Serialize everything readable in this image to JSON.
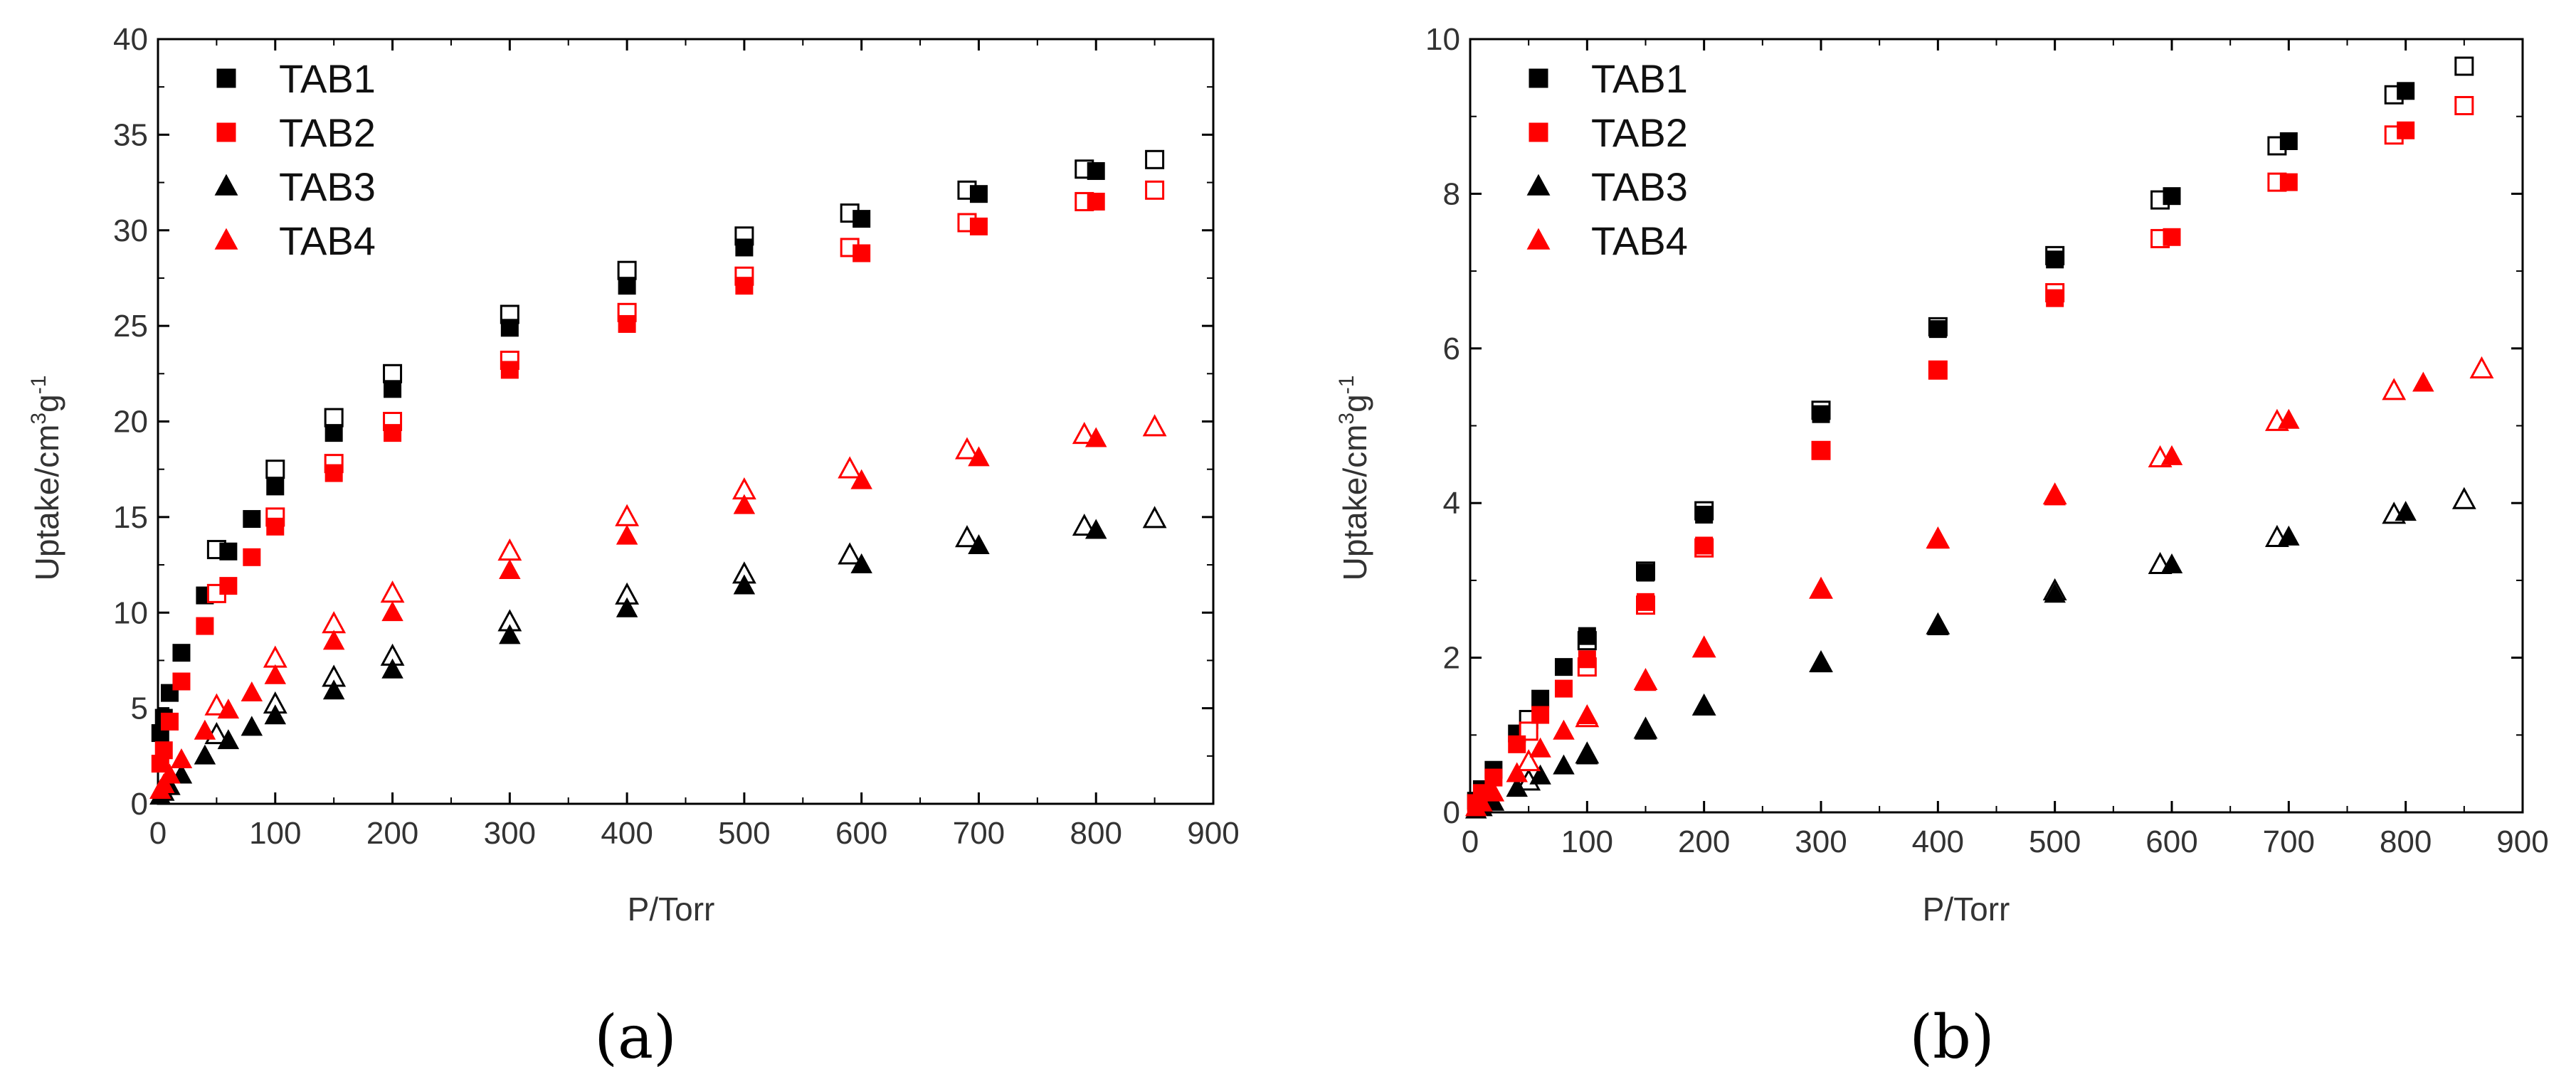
{
  "chart_data": [
    {
      "type": "scatter",
      "caption": "(a)",
      "xlabel": "P/Torr",
      "ylabel_main": "Uptake/cm",
      "ylabel_sup1": "3",
      "ylabel_mid": "g",
      "ylabel_sup2": "-1",
      "xlim": [
        0,
        900
      ],
      "ylim": [
        0,
        40
      ],
      "xticks": [
        "0",
        "100",
        "200",
        "300",
        "400",
        "500",
        "600",
        "700",
        "800",
        "900"
      ],
      "yticks": [
        "0",
        "5",
        "10",
        "15",
        "20",
        "25",
        "30",
        "35",
        "40"
      ],
      "legend": [
        {
          "label": "TAB1",
          "marker": "square",
          "color": "#000000"
        },
        {
          "label": "TAB2",
          "marker": "square",
          "color": "#ff0000"
        },
        {
          "label": "TAB3",
          "marker": "triangle",
          "color": "#000000"
        },
        {
          "label": "TAB4",
          "marker": "triangle",
          "color": "#ff0000"
        }
      ],
      "series": [
        {
          "name": "TAB1",
          "marker": "square",
          "color": "#000000",
          "adsorption": [
            [
              2,
              3.7
            ],
            [
              5,
              4.5
            ],
            [
              10,
              5.8
            ],
            [
              20,
              7.9
            ],
            [
              40,
              10.9
            ],
            [
              60,
              13.2
            ],
            [
              80,
              14.9
            ],
            [
              100,
              16.6
            ],
            [
              150,
              19.4
            ],
            [
              200,
              21.7
            ],
            [
              300,
              24.9
            ],
            [
              400,
              27.1
            ],
            [
              500,
              29.1
            ],
            [
              600,
              30.6
            ],
            [
              700,
              31.9
            ],
            [
              800,
              33.1
            ]
          ],
          "desorption": [
            [
              50,
              13.3
            ],
            [
              100,
              17.5
            ],
            [
              150,
              20.2
            ],
            [
              200,
              22.5
            ],
            [
              300,
              25.6
            ],
            [
              400,
              27.9
            ],
            [
              500,
              29.7
            ],
            [
              590,
              30.9
            ],
            [
              690,
              32.1
            ],
            [
              790,
              33.2
            ],
            [
              850,
              33.7
            ]
          ]
        },
        {
          "name": "TAB2",
          "marker": "square",
          "color": "#ff0000",
          "adsorption": [
            [
              2,
              2.1
            ],
            [
              5,
              2.8
            ],
            [
              10,
              4.3
            ],
            [
              20,
              6.4
            ],
            [
              40,
              9.3
            ],
            [
              60,
              11.4
            ],
            [
              80,
              12.9
            ],
            [
              100,
              14.5
            ],
            [
              150,
              17.3
            ],
            [
              200,
              19.4
            ],
            [
              300,
              22.7
            ],
            [
              400,
              25.1
            ],
            [
              500,
              27.1
            ],
            [
              600,
              28.8
            ],
            [
              700,
              30.2
            ],
            [
              800,
              31.5
            ]
          ],
          "desorption": [
            [
              50,
              11.0
            ],
            [
              100,
              15.0
            ],
            [
              150,
              17.8
            ],
            [
              200,
              20.0
            ],
            [
              300,
              23.2
            ],
            [
              400,
              25.7
            ],
            [
              500,
              27.6
            ],
            [
              590,
              29.1
            ],
            [
              690,
              30.4
            ],
            [
              790,
              31.5
            ],
            [
              850,
              32.1
            ]
          ]
        },
        {
          "name": "TAB3",
          "marker": "triangle",
          "color": "#000000",
          "adsorption": [
            [
              2,
              0.4
            ],
            [
              5,
              0.6
            ],
            [
              10,
              0.9
            ],
            [
              20,
              1.5
            ],
            [
              40,
              2.5
            ],
            [
              60,
              3.3
            ],
            [
              80,
              4.0
            ],
            [
              100,
              4.6
            ],
            [
              150,
              5.9
            ],
            [
              200,
              7.0
            ],
            [
              300,
              8.8
            ],
            [
              400,
              10.2
            ],
            [
              500,
              11.4
            ],
            [
              600,
              12.5
            ],
            [
              700,
              13.5
            ],
            [
              800,
              14.3
            ]
          ],
          "desorption": [
            [
              50,
              3.6
            ],
            [
              100,
              5.2
            ],
            [
              150,
              6.6
            ],
            [
              200,
              7.7
            ],
            [
              300,
              9.5
            ],
            [
              400,
              10.9
            ],
            [
              500,
              12.0
            ],
            [
              590,
              13.0
            ],
            [
              690,
              13.9
            ],
            [
              790,
              14.5
            ],
            [
              850,
              14.9
            ]
          ]
        },
        {
          "name": "TAB4",
          "marker": "triangle",
          "color": "#ff0000",
          "adsorption": [
            [
              2,
              0.7
            ],
            [
              5,
              1.0
            ],
            [
              10,
              1.5
            ],
            [
              20,
              2.3
            ],
            [
              40,
              3.8
            ],
            [
              60,
              4.9
            ],
            [
              80,
              5.8
            ],
            [
              100,
              6.7
            ],
            [
              150,
              8.5
            ],
            [
              200,
              10.0
            ],
            [
              300,
              12.2
            ],
            [
              400,
              14.0
            ],
            [
              500,
              15.6
            ],
            [
              600,
              16.9
            ],
            [
              700,
              18.1
            ],
            [
              800,
              19.1
            ]
          ],
          "desorption": [
            [
              50,
              5.1
            ],
            [
              100,
              7.6
            ],
            [
              150,
              9.4
            ],
            [
              200,
              11.0
            ],
            [
              300,
              13.2
            ],
            [
              400,
              15.0
            ],
            [
              500,
              16.4
            ],
            [
              590,
              17.5
            ],
            [
              690,
              18.5
            ],
            [
              790,
              19.3
            ],
            [
              850,
              19.7
            ]
          ]
        }
      ]
    },
    {
      "type": "scatter",
      "caption": "(b)",
      "xlabel": "P/Torr",
      "ylabel_main": "Uptake/cm",
      "ylabel_sup1": "3",
      "ylabel_mid": "g",
      "ylabel_sup2": "-1",
      "xlim": [
        0,
        900
      ],
      "ylim": [
        0,
        10
      ],
      "xticks": [
        "0",
        "100",
        "200",
        "300",
        "400",
        "500",
        "600",
        "700",
        "800",
        "900"
      ],
      "yticks": [
        "0",
        "2",
        "4",
        "6",
        "8",
        "10"
      ],
      "legend": [
        {
          "label": "TAB1",
          "marker": "square",
          "color": "#000000"
        },
        {
          "label": "TAB2",
          "marker": "square",
          "color": "#ff0000"
        },
        {
          "label": "TAB3",
          "marker": "triangle",
          "color": "#000000"
        },
        {
          "label": "TAB4",
          "marker": "triangle",
          "color": "#ff0000"
        }
      ],
      "series": [
        {
          "name": "TAB1",
          "marker": "square",
          "color": "#000000",
          "adsorption": [
            [
              5,
              0.15
            ],
            [
              10,
              0.3
            ],
            [
              20,
              0.55
            ],
            [
              40,
              1.02
            ],
            [
              60,
              1.47
            ],
            [
              80,
              1.88
            ],
            [
              100,
              2.28
            ],
            [
              150,
              3.1
            ],
            [
              200,
              3.85
            ],
            [
              300,
              5.15
            ],
            [
              400,
              6.25
            ],
            [
              500,
              7.15
            ],
            [
              600,
              7.97
            ],
            [
              700,
              8.68
            ],
            [
              800,
              9.33
            ]
          ],
          "desorption": [
            [
              50,
              1.2
            ],
            [
              100,
              2.22
            ],
            [
              150,
              3.12
            ],
            [
              200,
              3.9
            ],
            [
              300,
              5.2
            ],
            [
              400,
              6.28
            ],
            [
              500,
              7.2
            ],
            [
              590,
              7.92
            ],
            [
              690,
              8.62
            ],
            [
              790,
              9.28
            ],
            [
              850,
              9.65
            ]
          ]
        },
        {
          "name": "TAB2",
          "marker": "square",
          "color": "#ff0000",
          "adsorption": [
            [
              5,
              0.12
            ],
            [
              10,
              0.25
            ],
            [
              20,
              0.45
            ],
            [
              40,
              0.88
            ],
            [
              60,
              1.26
            ],
            [
              80,
              1.6
            ],
            [
              100,
              1.98
            ],
            [
              150,
              2.72
            ],
            [
              200,
              3.45
            ],
            [
              300,
              4.68
            ],
            [
              400,
              5.72
            ],
            [
              500,
              6.65
            ],
            [
              600,
              7.44
            ],
            [
              700,
              8.15
            ],
            [
              800,
              8.82
            ]
          ],
          "desorption": [
            [
              50,
              1.05
            ],
            [
              100,
              1.88
            ],
            [
              150,
              2.68
            ],
            [
              200,
              3.42
            ],
            [
              300,
              4.68
            ],
            [
              400,
              5.72
            ],
            [
              500,
              6.72
            ],
            [
              590,
              7.42
            ],
            [
              690,
              8.15
            ],
            [
              790,
              8.76
            ],
            [
              850,
              9.14
            ]
          ]
        },
        {
          "name": "TAB3",
          "marker": "triangle",
          "color": "#000000",
          "adsorption": [
            [
              5,
              0.03
            ],
            [
              10,
              0.06
            ],
            [
              20,
              0.13
            ],
            [
              40,
              0.31
            ],
            [
              60,
              0.47
            ],
            [
              80,
              0.6
            ],
            [
              100,
              0.73
            ],
            [
              150,
              1.05
            ],
            [
              200,
              1.37
            ],
            [
              300,
              1.92
            ],
            [
              400,
              2.4
            ],
            [
              500,
              2.82
            ],
            [
              600,
              3.2
            ],
            [
              700,
              3.56
            ],
            [
              800,
              3.88
            ]
          ],
          "desorption": [
            [
              50,
              0.4
            ],
            [
              100,
              0.75
            ],
            [
              150,
              1.07
            ],
            [
              200,
              1.37
            ],
            [
              300,
              1.93
            ],
            [
              400,
              2.42
            ],
            [
              500,
              2.86
            ],
            [
              590,
              3.2
            ],
            [
              690,
              3.55
            ],
            [
              790,
              3.85
            ],
            [
              850,
              4.04
            ]
          ]
        },
        {
          "name": "TAB4",
          "marker": "triangle",
          "color": "#ff0000",
          "adsorption": [
            [
              5,
              0.06
            ],
            [
              10,
              0.12
            ],
            [
              20,
              0.25
            ],
            [
              40,
              0.5
            ],
            [
              60,
              0.82
            ],
            [
              80,
              1.05
            ],
            [
              100,
              1.25
            ],
            [
              150,
              1.68
            ],
            [
              200,
              2.12
            ],
            [
              300,
              2.88
            ],
            [
              400,
              3.52
            ],
            [
              500,
              4.08
            ],
            [
              600,
              4.6
            ],
            [
              700,
              5.07
            ],
            [
              815,
              5.55
            ]
          ],
          "desorption": [
            [
              50,
              0.65
            ],
            [
              100,
              1.22
            ],
            [
              150,
              1.7
            ],
            [
              200,
              2.12
            ],
            [
              300,
              2.88
            ],
            [
              400,
              3.53
            ],
            [
              500,
              4.1
            ],
            [
              590,
              4.58
            ],
            [
              690,
              5.05
            ],
            [
              790,
              5.45
            ],
            [
              865,
              5.73
            ]
          ]
        }
      ]
    }
  ]
}
